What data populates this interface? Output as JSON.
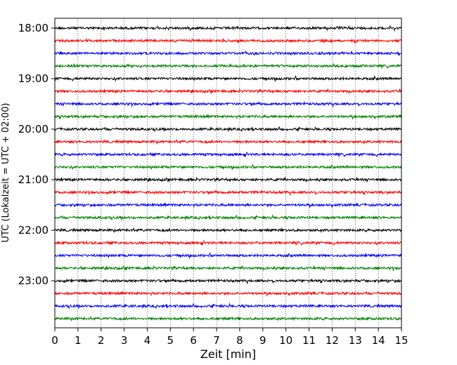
{
  "chart_data": {
    "type": "line",
    "title": "",
    "xlabel": "Zeit  [min]",
    "ylabel": "UTC (Lokalzeit = UTC + 02:00)",
    "xlim": [
      0,
      15
    ],
    "x_ticks": [
      0,
      1,
      2,
      3,
      4,
      5,
      6,
      7,
      8,
      9,
      10,
      11,
      12,
      13,
      14,
      15
    ],
    "y_tick_labels": [
      "18:00",
      "19:00",
      "20:00",
      "21:00",
      "22:00",
      "23:00"
    ],
    "grid": "vertical dotted lines at each minute",
    "trace_colors": [
      "#000000",
      "#ff0000",
      "#0000ff",
      "#008000"
    ],
    "traces": [
      "18:00",
      "18:15",
      "18:30",
      "18:45",
      "19:00",
      "19:15",
      "19:30",
      "19:45",
      "20:00",
      "20:15",
      "20:30",
      "20:45",
      "21:00",
      "21:15",
      "21:30",
      "21:45",
      "22:00",
      "22:15",
      "22:30",
      "22:45",
      "23:00",
      "23:15",
      "23:30",
      "23:45"
    ]
  }
}
